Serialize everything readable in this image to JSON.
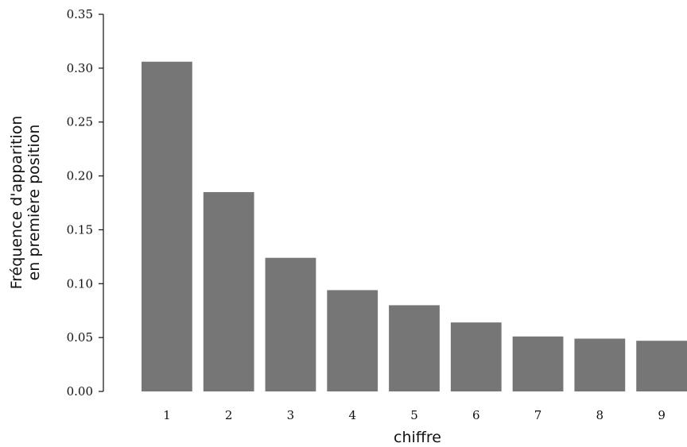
{
  "chart_data": {
    "type": "bar",
    "title": "",
    "xlabel": "chiffre",
    "ylabel_lines": [
      "Fréquence d'apparition",
      "en première position"
    ],
    "categories": [
      "1",
      "2",
      "3",
      "4",
      "5",
      "6",
      "7",
      "8",
      "9"
    ],
    "values": [
      0.306,
      0.185,
      0.124,
      0.094,
      0.08,
      0.064,
      0.051,
      0.049,
      0.047
    ],
    "ylim": [
      0,
      0.35
    ],
    "yticks": [
      "0.00",
      "0.05",
      "0.10",
      "0.15",
      "0.20",
      "0.25",
      "0.30",
      "0.35"
    ],
    "grid": false,
    "legend": "none",
    "bar_color": "#767676"
  }
}
